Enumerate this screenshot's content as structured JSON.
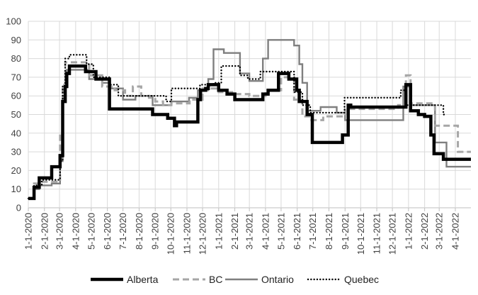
{
  "chart_data": {
    "type": "line",
    "title": "",
    "xlabel": "",
    "ylabel": "",
    "ylim": [
      0,
      100
    ],
    "yticks": [
      0,
      10,
      20,
      30,
      40,
      50,
      60,
      70,
      80,
      90,
      100
    ],
    "xlim": [
      "2020-01-01",
      "2022-05-01"
    ],
    "xticks": [
      "2020-01-01",
      "2020-02-01",
      "2020-03-01",
      "2020-04-01",
      "2020-05-01",
      "2020-06-01",
      "2020-07-01",
      "2020-08-01",
      "2020-09-01",
      "2020-10-01",
      "2020-11-01",
      "2020-12-01",
      "2021-01-01",
      "2021-02-01",
      "2021-03-01",
      "2021-04-01",
      "2021-05-01",
      "2021-06-01",
      "2021-07-01",
      "2021-08-01",
      "2021-09-01",
      "2021-10-01",
      "2021-11-01",
      "2021-12-01",
      "2022-01-01",
      "2022-02-01",
      "2022-03-01",
      "2022-04-01"
    ],
    "xtick_labels": [
      "1-1-2020",
      "2-1-2020",
      "3-1-2020",
      "4-1-2020",
      "5-1-2020",
      "6-1-2020",
      "7-1-2020",
      "8-1-2020",
      "9-1-2020",
      "10-1-2020",
      "11-1-2020",
      "12-1-2020",
      "1-1-2021",
      "2-1-2021",
      "3-1-2021",
      "4-1-2021",
      "5-1-2021",
      "6-1-2021",
      "7-1-2021",
      "8-1-2021",
      "9-1-2021",
      "10-1-2021",
      "11-1-2021",
      "12-1-2021",
      "1-1-2022",
      "2-1-2022",
      "3-1-2022",
      "4-1-2022"
    ],
    "grid": true,
    "legend_position": "bottom",
    "series": [
      {
        "name": "Alberta",
        "color": "#000000",
        "style": "solid-thick",
        "points": [
          [
            "2020-01-01",
            5
          ],
          [
            "2020-01-12",
            5
          ],
          [
            "2020-01-12",
            11
          ],
          [
            "2020-01-22",
            11
          ],
          [
            "2020-01-22",
            16
          ],
          [
            "2020-02-15",
            16
          ],
          [
            "2020-02-15",
            22
          ],
          [
            "2020-03-02",
            22
          ],
          [
            "2020-03-02",
            28
          ],
          [
            "2020-03-07",
            28
          ],
          [
            "2020-03-07",
            57
          ],
          [
            "2020-03-12",
            57
          ],
          [
            "2020-03-12",
            65
          ],
          [
            "2020-03-15",
            65
          ],
          [
            "2020-03-15",
            72
          ],
          [
            "2020-03-20",
            72
          ],
          [
            "2020-03-20",
            76
          ],
          [
            "2020-04-20",
            76
          ],
          [
            "2020-04-20",
            73
          ],
          [
            "2020-05-10",
            73
          ],
          [
            "2020-05-10",
            69
          ],
          [
            "2020-06-05",
            69
          ],
          [
            "2020-06-05",
            53
          ],
          [
            "2020-08-27",
            53
          ],
          [
            "2020-08-27",
            50
          ],
          [
            "2020-09-25",
            50
          ],
          [
            "2020-09-25",
            48
          ],
          [
            "2020-10-08",
            48
          ],
          [
            "2020-10-08",
            44
          ],
          [
            "2020-10-12",
            44
          ],
          [
            "2020-10-12",
            46
          ],
          [
            "2020-11-22",
            46
          ],
          [
            "2020-11-22",
            58
          ],
          [
            "2020-11-27",
            58
          ],
          [
            "2020-11-27",
            63
          ],
          [
            "2020-12-07",
            63
          ],
          [
            "2020-12-07",
            64
          ],
          [
            "2020-12-12",
            64
          ],
          [
            "2020-12-12",
            66
          ],
          [
            "2021-01-01",
            66
          ],
          [
            "2021-01-01",
            63
          ],
          [
            "2021-01-17",
            63
          ],
          [
            "2021-01-17",
            61
          ],
          [
            "2021-02-01",
            61
          ],
          [
            "2021-02-01",
            58
          ],
          [
            "2021-03-27",
            58
          ],
          [
            "2021-03-27",
            61
          ],
          [
            "2021-04-06",
            61
          ],
          [
            "2021-04-06",
            63
          ],
          [
            "2021-04-26",
            63
          ],
          [
            "2021-04-26",
            72
          ],
          [
            "2021-05-16",
            72
          ],
          [
            "2021-05-16",
            69
          ],
          [
            "2021-05-31",
            69
          ],
          [
            "2021-05-31",
            63
          ],
          [
            "2021-06-05",
            63
          ],
          [
            "2021-06-05",
            57
          ],
          [
            "2021-06-20",
            57
          ],
          [
            "2021-06-20",
            50
          ],
          [
            "2021-06-30",
            50
          ],
          [
            "2021-06-30",
            35
          ],
          [
            "2021-08-27",
            35
          ],
          [
            "2021-08-27",
            39
          ],
          [
            "2021-09-07",
            39
          ],
          [
            "2021-09-07",
            55
          ],
          [
            "2021-09-12",
            55
          ],
          [
            "2021-09-12",
            54
          ],
          [
            "2021-12-27",
            54
          ],
          [
            "2021-12-27",
            66
          ],
          [
            "2022-01-05",
            66
          ],
          [
            "2022-01-05",
            52
          ],
          [
            "2022-01-20",
            52
          ],
          [
            "2022-01-20",
            50
          ],
          [
            "2022-02-01",
            50
          ],
          [
            "2022-02-01",
            49
          ],
          [
            "2022-02-13",
            49
          ],
          [
            "2022-02-13",
            39
          ],
          [
            "2022-02-19",
            39
          ],
          [
            "2022-02-19",
            29
          ],
          [
            "2022-03-09",
            29
          ],
          [
            "2022-03-09",
            26
          ],
          [
            "2022-05-01",
            26
          ]
        ]
      },
      {
        "name": "BC",
        "color": "#a6a6a6",
        "style": "dashed",
        "points": [
          [
            "2020-01-01",
            5
          ],
          [
            "2020-01-12",
            5
          ],
          [
            "2020-01-12",
            13
          ],
          [
            "2020-01-27",
            13
          ],
          [
            "2020-01-27",
            14
          ],
          [
            "2020-03-02",
            14
          ],
          [
            "2020-03-02",
            40
          ],
          [
            "2020-03-07",
            40
          ],
          [
            "2020-03-07",
            66
          ],
          [
            "2020-03-12",
            66
          ],
          [
            "2020-03-12",
            78
          ],
          [
            "2020-04-27",
            78
          ],
          [
            "2020-04-27",
            71
          ],
          [
            "2020-05-22",
            71
          ],
          [
            "2020-05-22",
            65
          ],
          [
            "2020-06-15",
            65
          ],
          [
            "2020-06-15",
            63
          ],
          [
            "2020-07-05",
            63
          ],
          [
            "2020-07-05",
            60
          ],
          [
            "2020-07-20",
            60
          ],
          [
            "2020-07-20",
            65
          ],
          [
            "2020-08-05",
            65
          ],
          [
            "2020-08-05",
            60
          ],
          [
            "2020-08-20",
            60
          ],
          [
            "2020-08-20",
            59
          ],
          [
            "2020-09-01",
            59
          ],
          [
            "2020-09-01",
            57
          ],
          [
            "2020-09-16",
            57
          ],
          [
            "2020-09-16",
            55
          ],
          [
            "2020-10-02",
            55
          ],
          [
            "2020-10-02",
            56
          ],
          [
            "2020-11-06",
            56
          ],
          [
            "2020-11-06",
            58
          ],
          [
            "2020-12-01",
            58
          ],
          [
            "2020-12-01",
            64
          ],
          [
            "2021-01-01",
            64
          ],
          [
            "2021-01-01",
            62
          ],
          [
            "2021-02-01",
            62
          ],
          [
            "2021-02-01",
            61
          ],
          [
            "2021-03-01",
            61
          ],
          [
            "2021-03-01",
            60
          ],
          [
            "2021-04-01",
            60
          ],
          [
            "2021-04-01",
            63
          ],
          [
            "2021-05-01",
            63
          ],
          [
            "2021-05-01",
            70
          ],
          [
            "2021-05-26",
            70
          ],
          [
            "2021-05-26",
            58
          ],
          [
            "2021-06-11",
            58
          ],
          [
            "2021-06-11",
            49
          ],
          [
            "2021-06-26",
            49
          ],
          [
            "2021-06-26",
            47
          ],
          [
            "2021-07-21",
            47
          ],
          [
            "2021-07-21",
            49
          ],
          [
            "2021-09-01",
            49
          ],
          [
            "2021-09-01",
            53
          ],
          [
            "2021-12-12",
            53
          ],
          [
            "2021-12-12",
            55
          ],
          [
            "2021-12-27",
            55
          ],
          [
            "2021-12-27",
            71
          ],
          [
            "2022-01-05",
            71
          ],
          [
            "2022-01-05",
            56
          ],
          [
            "2022-02-21",
            56
          ],
          [
            "2022-02-21",
            44
          ],
          [
            "2022-04-06",
            44
          ],
          [
            "2022-04-06",
            30
          ],
          [
            "2022-05-01",
            30
          ]
        ]
      },
      {
        "name": "Ontario",
        "color": "#7f7f7f",
        "style": "solid",
        "points": [
          [
            "2020-01-01",
            5
          ],
          [
            "2020-01-12",
            5
          ],
          [
            "2020-01-12",
            10
          ],
          [
            "2020-01-22",
            10
          ],
          [
            "2020-01-22",
            12
          ],
          [
            "2020-02-15",
            12
          ],
          [
            "2020-02-15",
            13
          ],
          [
            "2020-03-02",
            13
          ],
          [
            "2020-03-02",
            25
          ],
          [
            "2020-03-07",
            25
          ],
          [
            "2020-03-07",
            60
          ],
          [
            "2020-03-12",
            60
          ],
          [
            "2020-03-12",
            72
          ],
          [
            "2020-03-15",
            72
          ],
          [
            "2020-03-15",
            74
          ],
          [
            "2020-04-27",
            74
          ],
          [
            "2020-04-27",
            69
          ],
          [
            "2020-05-22",
            69
          ],
          [
            "2020-05-22",
            67
          ],
          [
            "2020-06-05",
            67
          ],
          [
            "2020-06-05",
            64
          ],
          [
            "2020-07-01",
            64
          ],
          [
            "2020-07-01",
            58
          ],
          [
            "2020-07-25",
            58
          ],
          [
            "2020-07-25",
            60
          ],
          [
            "2020-08-27",
            60
          ],
          [
            "2020-08-27",
            55
          ],
          [
            "2020-10-02",
            55
          ],
          [
            "2020-10-02",
            57
          ],
          [
            "2020-11-05",
            57
          ],
          [
            "2020-11-05",
            59
          ],
          [
            "2020-11-22",
            59
          ],
          [
            "2020-11-22",
            63
          ],
          [
            "2020-12-12",
            63
          ],
          [
            "2020-12-12",
            69
          ],
          [
            "2020-12-22",
            69
          ],
          [
            "2020-12-22",
            85
          ],
          [
            "2021-01-11",
            85
          ],
          [
            "2021-01-11",
            83
          ],
          [
            "2021-02-11",
            83
          ],
          [
            "2021-02-11",
            72
          ],
          [
            "2021-03-01",
            72
          ],
          [
            "2021-03-01",
            68
          ],
          [
            "2021-03-27",
            68
          ],
          [
            "2021-03-27",
            80
          ],
          [
            "2021-04-06",
            80
          ],
          [
            "2021-04-06",
            90
          ],
          [
            "2021-05-26",
            90
          ],
          [
            "2021-05-26",
            87
          ],
          [
            "2021-06-05",
            87
          ],
          [
            "2021-06-05",
            77
          ],
          [
            "2021-06-11",
            77
          ],
          [
            "2021-06-11",
            67
          ],
          [
            "2021-06-20",
            67
          ],
          [
            "2021-06-20",
            52
          ],
          [
            "2021-07-16",
            52
          ],
          [
            "2021-07-16",
            54
          ],
          [
            "2021-08-16",
            54
          ],
          [
            "2021-08-16",
            51
          ],
          [
            "2021-09-01",
            51
          ],
          [
            "2021-09-01",
            47
          ],
          [
            "2021-12-22",
            47
          ],
          [
            "2021-12-22",
            65
          ],
          [
            "2022-01-05",
            65
          ],
          [
            "2022-01-05",
            55
          ],
          [
            "2022-02-21",
            55
          ],
          [
            "2022-02-21",
            35
          ],
          [
            "2022-03-15",
            35
          ],
          [
            "2022-03-15",
            22
          ],
          [
            "2022-05-01",
            22
          ]
        ]
      },
      {
        "name": "Quebec",
        "color": "#000000",
        "style": "dotted",
        "points": [
          [
            "2020-01-01",
            5
          ],
          [
            "2020-01-12",
            5
          ],
          [
            "2020-01-12",
            12
          ],
          [
            "2020-01-27",
            12
          ],
          [
            "2020-01-27",
            15
          ],
          [
            "2020-03-02",
            15
          ],
          [
            "2020-03-02",
            25
          ],
          [
            "2020-03-07",
            25
          ],
          [
            "2020-03-07",
            65
          ],
          [
            "2020-03-12",
            65
          ],
          [
            "2020-03-12",
            80
          ],
          [
            "2020-03-20",
            80
          ],
          [
            "2020-03-20",
            82
          ],
          [
            "2020-04-22",
            82
          ],
          [
            "2020-04-22",
            77
          ],
          [
            "2020-05-05",
            77
          ],
          [
            "2020-05-05",
            70
          ],
          [
            "2020-06-05",
            70
          ],
          [
            "2020-06-05",
            66
          ],
          [
            "2020-06-22",
            66
          ],
          [
            "2020-06-22",
            60
          ],
          [
            "2020-09-22",
            60
          ],
          [
            "2020-09-22",
            57
          ],
          [
            "2020-10-02",
            57
          ],
          [
            "2020-10-02",
            64
          ],
          [
            "2020-11-26",
            64
          ],
          [
            "2020-11-26",
            66
          ],
          [
            "2020-12-22",
            66
          ],
          [
            "2020-12-22",
            67
          ],
          [
            "2021-01-06",
            67
          ],
          [
            "2021-01-06",
            76
          ],
          [
            "2021-02-11",
            76
          ],
          [
            "2021-02-11",
            71
          ],
          [
            "2021-02-26",
            71
          ],
          [
            "2021-02-26",
            69
          ],
          [
            "2021-03-22",
            69
          ],
          [
            "2021-03-22",
            73
          ],
          [
            "2021-05-26",
            73
          ],
          [
            "2021-05-26",
            62
          ],
          [
            "2021-06-11",
            62
          ],
          [
            "2021-06-11",
            55
          ],
          [
            "2021-06-26",
            55
          ],
          [
            "2021-06-26",
            51
          ],
          [
            "2021-08-31",
            51
          ],
          [
            "2021-08-31",
            59
          ],
          [
            "2021-12-17",
            59
          ],
          [
            "2021-12-17",
            63
          ],
          [
            "2021-12-27",
            63
          ],
          [
            "2021-12-27",
            55
          ],
          [
            "2022-03-09",
            55
          ],
          [
            "2022-03-09",
            50
          ],
          [
            "2022-03-14",
            50
          ]
        ]
      }
    ]
  }
}
